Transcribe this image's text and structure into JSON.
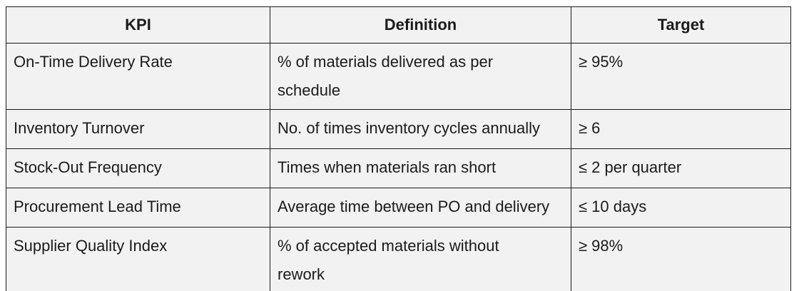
{
  "table": {
    "headers": [
      "KPI",
      "Definition",
      "Target"
    ],
    "rows": [
      {
        "kpi": "On-Time Delivery Rate",
        "definition": "% of materials delivered as per\nschedule",
        "target": "≥ 95%"
      },
      {
        "kpi": "Inventory Turnover",
        "definition": "No. of times inventory cycles annually",
        "target": "≥ 6"
      },
      {
        "kpi": "Stock-Out Frequency",
        "definition": "Times when materials ran short",
        "target": "≤ 2 per quarter"
      },
      {
        "kpi": "Procurement Lead Time",
        "definition": "Average time between PO and delivery",
        "target": "≤ 10 days"
      },
      {
        "kpi": "Supplier Quality Index",
        "definition": "% of accepted materials without\nrework",
        "target": "≥ 98%"
      }
    ],
    "colors": {
      "cell_background": "#f2f2f2",
      "border": "#1a1a1a",
      "text": "#1b1b1b",
      "page_background": "#ffffff"
    }
  }
}
